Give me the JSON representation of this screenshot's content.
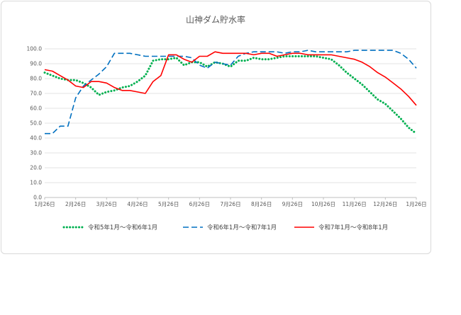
{
  "chart_data": {
    "type": "line",
    "title": "山神ダム貯水率",
    "xlabel": "",
    "ylabel": "",
    "ylim": [
      0,
      100
    ],
    "y_ticks": [
      "0.0",
      "10.0",
      "20.0",
      "30.0",
      "40.0",
      "50.0",
      "60.0",
      "70.0",
      "80.0",
      "90.0",
      "100.0"
    ],
    "x_ticks": [
      "1月26日",
      "2月26日",
      "3月26日",
      "4月26日",
      "5月26日",
      "6月26日",
      "7月26日",
      "8月26日",
      "9月26日",
      "10月26日",
      "11月26日",
      "12月26日",
      "1月26日"
    ],
    "grid": "horizontal",
    "legend_position": "bottom",
    "series": [
      {
        "name": "令和5年1月～令和6年1月",
        "color": "#00b050",
        "style": "dotted",
        "x": [
          0,
          0.25,
          0.5,
          0.75,
          1,
          1.25,
          1.5,
          1.75,
          2,
          2.25,
          2.5,
          2.75,
          3,
          3.25,
          3.5,
          3.75,
          4,
          4.25,
          4.5,
          4.75,
          5,
          5.25,
          5.5,
          5.75,
          6,
          6.25,
          6.5,
          6.75,
          7,
          7.25,
          7.5,
          7.75,
          8,
          8.25,
          8.5,
          8.75,
          9,
          9.25,
          9.5,
          9.75,
          10,
          10.25,
          10.5,
          10.75,
          11,
          11.25,
          11.5,
          11.75,
          12
        ],
        "values": [
          84,
          82,
          80,
          79,
          79,
          77,
          74,
          69,
          71,
          72,
          74,
          75,
          78,
          82,
          92,
          93,
          93,
          94,
          89,
          91,
          91,
          88,
          91,
          90,
          88,
          92,
          92,
          94,
          93,
          93,
          94,
          95,
          95,
          95,
          95,
          95,
          94,
          93,
          89,
          84,
          80,
          76,
          71,
          66,
          63,
          58,
          53,
          47,
          43
        ]
      },
      {
        "name": "令和6年1月～令和7年1月",
        "color": "#0070c0",
        "style": "dashed",
        "x": [
          0,
          0.25,
          0.5,
          0.75,
          1,
          1.25,
          1.5,
          1.75,
          2,
          2.25,
          2.5,
          2.75,
          3,
          3.25,
          3.5,
          3.75,
          4,
          4.25,
          4.5,
          4.75,
          5,
          5.25,
          5.5,
          5.75,
          6,
          6.25,
          6.5,
          6.75,
          7,
          7.25,
          7.5,
          7.75,
          8,
          8.25,
          8.5,
          8.75,
          9,
          9.25,
          9.5,
          9.75,
          10,
          10.25,
          10.5,
          10.75,
          11,
          11.25,
          11.5,
          11.75,
          12
        ],
        "values": [
          43,
          43,
          48,
          48,
          67,
          75,
          79,
          83,
          88,
          97,
          97,
          97,
          96,
          95,
          95,
          95,
          95,
          95,
          95,
          94,
          89,
          87,
          91,
          90,
          89,
          95,
          97,
          98,
          98,
          98,
          98,
          97,
          98,
          98,
          99,
          98,
          98,
          98,
          98,
          98,
          99,
          99,
          99,
          99,
          99,
          99,
          97,
          93,
          87
        ]
      },
      {
        "name": "令和7年1月～令和8年1月",
        "color": "#ff0000",
        "style": "solid",
        "x": [
          0,
          0.25,
          0.5,
          0.75,
          1,
          1.25,
          1.5,
          1.75,
          2,
          2.25,
          2.5,
          2.75,
          3,
          3.25,
          3.5,
          3.75,
          4,
          4.25,
          4.5,
          4.75,
          5,
          5.25,
          5.5,
          5.75,
          6,
          6.25,
          6.5,
          6.75,
          7,
          7.25,
          7.5,
          7.75,
          8,
          8.25,
          8.5,
          8.75,
          9,
          9.25,
          9.5,
          9.75,
          10,
          10.25,
          10.5,
          10.75,
          11,
          11.25,
          11.5,
          11.75,
          12
        ],
        "values": [
          86,
          85,
          82,
          79,
          75,
          74,
          78,
          78,
          77,
          74,
          72,
          72,
          71,
          70,
          78,
          82,
          96,
          96,
          93,
          91,
          95,
          95,
          98,
          97,
          97,
          97,
          97,
          96,
          97,
          97,
          95,
          96,
          97,
          97,
          96,
          96,
          96,
          96,
          95,
          94,
          93,
          91,
          88,
          84,
          81,
          77,
          73,
          68,
          62
        ]
      }
    ]
  }
}
